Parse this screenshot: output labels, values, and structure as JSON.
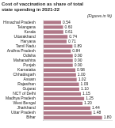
{
  "chart_data": {
    "type": "bar",
    "orientation": "horizontal",
    "title": "Cost of vaccination as share of total\nstate spending in 2021-22",
    "subtitle": "(Figures in %)",
    "categories": [
      "Himachal Pradesh",
      "Telangana",
      "Kerala",
      "Uttarakhand",
      "Haryana",
      "Tamil Nadu",
      "Andhra Pradesh",
      "Odisha",
      "Maharashtra",
      "Punjab",
      "Karnataka",
      "Chhattisgarh",
      "Assam",
      "Rajasthan",
      "Gujarat",
      "NCT of Delhi",
      "Madhya Pradesh",
      "West Bengal",
      "Jharkhand",
      "Uttar Pradesh",
      "Bihar"
    ],
    "values": [
      0.54,
      0.6,
      0.61,
      0.74,
      0.71,
      0.89,
      0.84,
      0.9,
      0.9,
      0.9,
      0.98,
      1.0,
      1.02,
      1.09,
      1.1,
      1.15,
      1.25,
      1.2,
      1.44,
      1.48,
      1.8
    ],
    "value_labels": [
      "0.54",
      "0.60",
      "0.61",
      "0.74",
      "0.71",
      "0.89",
      "0.84",
      "0.90",
      "0.90",
      "0.90",
      "0.98",
      "1.00",
      "1.02",
      "1.09",
      "1.10",
      "1.15",
      "1.25",
      "1.20",
      "1.44",
      "1.48",
      "1.80"
    ],
    "color": "#b07888",
    "xlim": [
      0,
      2.1
    ],
    "data_labels": true,
    "tick_labels": "y",
    "grid": false
  }
}
